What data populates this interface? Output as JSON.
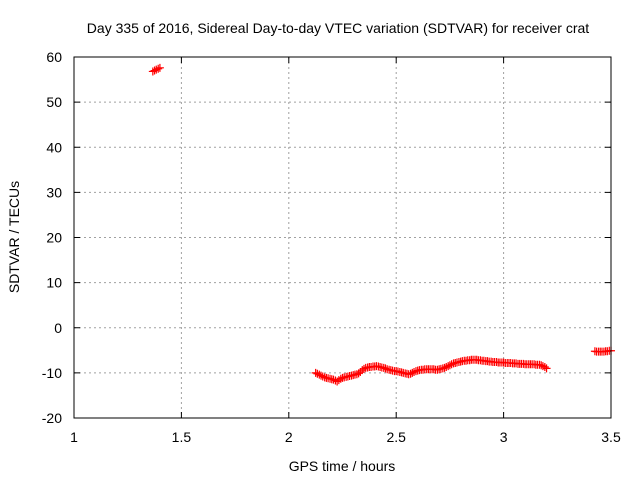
{
  "chart_data": {
    "type": "scatter",
    "title": "Day 335 of 2016, Sidereal Day-to-day VTEC variation (SDTVAR) for receiver crat",
    "xlabel": "GPS time / hours",
    "ylabel": "SDTVAR / TECUs",
    "xlim": [
      1,
      3.5
    ],
    "ylim": [
      -20,
      60
    ],
    "xticks": [
      1,
      1.5,
      2,
      2.5,
      3,
      3.5
    ],
    "xtick_labels": [
      "1",
      "1.5",
      "2",
      "2.5",
      "3",
      "3.5"
    ],
    "yticks": [
      -20,
      -10,
      0,
      10,
      20,
      30,
      40,
      50,
      60
    ],
    "ytick_labels": [
      "-20",
      "-10",
      "0",
      "10",
      "20",
      "30",
      "40",
      "50",
      "60"
    ],
    "grid": true,
    "legend": "none",
    "marker": "plus",
    "color": "#ff0000",
    "series": [
      {
        "values": [
          [
            1.367,
            56.8
          ],
          [
            1.375,
            57.0
          ],
          [
            1.383,
            57.2
          ],
          [
            1.392,
            57.4
          ],
          [
            1.4,
            57.6
          ],
          [
            2.125,
            -10.0
          ],
          [
            2.133,
            -10.2
          ],
          [
            2.142,
            -10.4
          ],
          [
            2.15,
            -10.6
          ],
          [
            2.158,
            -10.8
          ],
          [
            2.167,
            -11.0
          ],
          [
            2.175,
            -11.1
          ],
          [
            2.183,
            -11.2
          ],
          [
            2.192,
            -11.3
          ],
          [
            2.2,
            -11.4
          ],
          [
            2.208,
            -11.5
          ],
          [
            2.217,
            -11.7
          ],
          [
            2.225,
            -11.9
          ],
          [
            2.233,
            -11.6
          ],
          [
            2.242,
            -11.3
          ],
          [
            2.25,
            -11.1
          ],
          [
            2.258,
            -11.0
          ],
          [
            2.267,
            -10.9
          ],
          [
            2.275,
            -10.8
          ],
          [
            2.283,
            -10.7
          ],
          [
            2.292,
            -10.6
          ],
          [
            2.3,
            -10.5
          ],
          [
            2.308,
            -10.4
          ],
          [
            2.317,
            -10.3
          ],
          [
            2.325,
            -10.1
          ],
          [
            2.333,
            -9.8
          ],
          [
            2.342,
            -9.4
          ],
          [
            2.35,
            -9.1
          ],
          [
            2.358,
            -8.9
          ],
          [
            2.367,
            -8.8
          ],
          [
            2.375,
            -8.7
          ],
          [
            2.383,
            -8.7
          ],
          [
            2.392,
            -8.6
          ],
          [
            2.4,
            -8.6
          ],
          [
            2.408,
            -8.5
          ],
          [
            2.417,
            -8.6
          ],
          [
            2.425,
            -8.7
          ],
          [
            2.433,
            -8.8
          ],
          [
            2.442,
            -8.9
          ],
          [
            2.45,
            -9.0
          ],
          [
            2.458,
            -9.2
          ],
          [
            2.467,
            -9.3
          ],
          [
            2.475,
            -9.4
          ],
          [
            2.483,
            -9.5
          ],
          [
            2.492,
            -9.6
          ],
          [
            2.5,
            -9.6
          ],
          [
            2.508,
            -9.7
          ],
          [
            2.517,
            -9.8
          ],
          [
            2.525,
            -9.9
          ],
          [
            2.533,
            -10.0
          ],
          [
            2.542,
            -10.1
          ],
          [
            2.55,
            -10.2
          ],
          [
            2.558,
            -10.3
          ],
          [
            2.567,
            -10.2
          ],
          [
            2.575,
            -10.0
          ],
          [
            2.583,
            -9.8
          ],
          [
            2.592,
            -9.6
          ],
          [
            2.6,
            -9.5
          ],
          [
            2.608,
            -9.4
          ],
          [
            2.617,
            -9.3
          ],
          [
            2.625,
            -9.3
          ],
          [
            2.633,
            -9.2
          ],
          [
            2.642,
            -9.2
          ],
          [
            2.65,
            -9.2
          ],
          [
            2.658,
            -9.2
          ],
          [
            2.667,
            -9.2
          ],
          [
            2.675,
            -9.2
          ],
          [
            2.683,
            -9.3
          ],
          [
            2.692,
            -9.3
          ],
          [
            2.7,
            -9.2
          ],
          [
            2.708,
            -9.1
          ],
          [
            2.717,
            -9.0
          ],
          [
            2.725,
            -8.9
          ],
          [
            2.733,
            -8.7
          ],
          [
            2.742,
            -8.5
          ],
          [
            2.75,
            -8.3
          ],
          [
            2.758,
            -8.1
          ],
          [
            2.767,
            -7.9
          ],
          [
            2.775,
            -7.8
          ],
          [
            2.783,
            -7.7
          ],
          [
            2.792,
            -7.6
          ],
          [
            2.8,
            -7.5
          ],
          [
            2.808,
            -7.4
          ],
          [
            2.817,
            -7.3
          ],
          [
            2.825,
            -7.3
          ],
          [
            2.833,
            -7.2
          ],
          [
            2.842,
            -7.2
          ],
          [
            2.85,
            -7.1
          ],
          [
            2.858,
            -7.1
          ],
          [
            2.867,
            -7.1
          ],
          [
            2.875,
            -7.1
          ],
          [
            2.883,
            -7.2
          ],
          [
            2.892,
            -7.2
          ],
          [
            2.9,
            -7.3
          ],
          [
            2.908,
            -7.3
          ],
          [
            2.917,
            -7.4
          ],
          [
            2.925,
            -7.4
          ],
          [
            2.933,
            -7.5
          ],
          [
            2.942,
            -7.5
          ],
          [
            2.95,
            -7.6
          ],
          [
            2.958,
            -7.6
          ],
          [
            2.967,
            -7.6
          ],
          [
            2.975,
            -7.7
          ],
          [
            2.983,
            -7.7
          ],
          [
            2.992,
            -7.7
          ],
          [
            3.0,
            -7.7
          ],
          [
            3.008,
            -7.8
          ],
          [
            3.017,
            -7.8
          ],
          [
            3.025,
            -7.8
          ],
          [
            3.033,
            -7.8
          ],
          [
            3.042,
            -7.9
          ],
          [
            3.05,
            -7.9
          ],
          [
            3.058,
            -7.9
          ],
          [
            3.067,
            -8.0
          ],
          [
            3.075,
            -8.0
          ],
          [
            3.083,
            -8.0
          ],
          [
            3.092,
            -8.0
          ],
          [
            3.1,
            -8.1
          ],
          [
            3.108,
            -8.1
          ],
          [
            3.117,
            -8.1
          ],
          [
            3.125,
            -8.1
          ],
          [
            3.133,
            -8.1
          ],
          [
            3.142,
            -8.1
          ],
          [
            3.15,
            -8.2
          ],
          [
            3.158,
            -8.2
          ],
          [
            3.167,
            -8.2
          ],
          [
            3.175,
            -8.3
          ],
          [
            3.183,
            -8.5
          ],
          [
            3.192,
            -8.7
          ],
          [
            3.2,
            -9.0
          ],
          [
            3.425,
            -5.2
          ],
          [
            3.433,
            -5.3
          ],
          [
            3.442,
            -5.3
          ],
          [
            3.45,
            -5.3
          ],
          [
            3.458,
            -5.3
          ],
          [
            3.467,
            -5.3
          ],
          [
            3.475,
            -5.2
          ],
          [
            3.483,
            -5.2
          ],
          [
            3.492,
            -5.1
          ],
          [
            3.5,
            -5.1
          ]
        ]
      }
    ]
  }
}
